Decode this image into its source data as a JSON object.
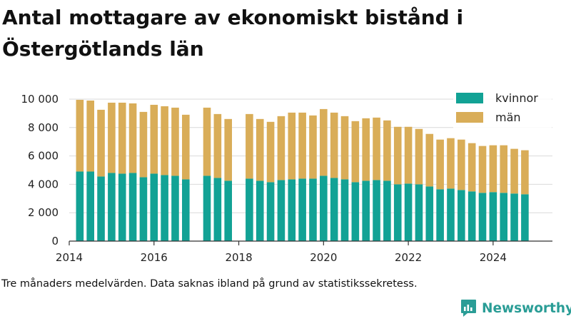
{
  "title": "Antal mottagare av ekonomiskt bistånd i Östergötlands län",
  "note": "Tre månaders medelvärden. Data saknas ibland på grund av statistikssekretess.",
  "brand": {
    "name": "Newsworthy",
    "icon": "newsworthy-logo-icon"
  },
  "colors": {
    "kvinnor": "#12a295",
    "man": "#d9ad58",
    "grid": "#d9d9d9",
    "brand": "#2a9d96"
  },
  "chart_data": {
    "type": "bar",
    "stacked": true,
    "grid": "horizontal",
    "legend_position": "top-right",
    "xlim": [
      2014.0,
      2025.4
    ],
    "ylim": [
      0,
      10400
    ],
    "x_ticks": [
      "2014",
      "2016",
      "2018",
      "2020",
      "2022",
      "2024"
    ],
    "y_ticks": [
      "0",
      "2 000",
      "4 000",
      "6 000",
      "8 000",
      "10 000"
    ],
    "x": [
      "2014-04",
      "2014-07",
      "2014-10",
      "2015-01",
      "2015-04",
      "2015-07",
      "2015-10",
      "2016-01",
      "2016-04",
      "2016-07",
      "2016-10",
      "2017-04",
      "2017-07",
      "2017-10",
      "2018-04",
      "2018-07",
      "2018-10",
      "2019-01",
      "2019-04",
      "2019-07",
      "2019-10",
      "2020-01",
      "2020-04",
      "2020-07",
      "2020-10",
      "2021-01",
      "2021-04",
      "2021-07",
      "2021-10",
      "2022-01",
      "2022-04",
      "2022-07",
      "2022-10",
      "2023-01",
      "2023-04",
      "2023-07",
      "2023-10",
      "2024-01",
      "2024-04",
      "2024-07",
      "2024-10"
    ],
    "series": [
      {
        "name": "kvinnor",
        "values": [
          4900,
          4900,
          4550,
          4800,
          4750,
          4800,
          4500,
          4750,
          4650,
          4600,
          4350,
          4600,
          4450,
          4250,
          4400,
          4250,
          4150,
          4300,
          4350,
          4400,
          4400,
          4600,
          4450,
          4350,
          4150,
          4250,
          4300,
          4250,
          4000,
          4050,
          4000,
          3850,
          3650,
          3700,
          3600,
          3500,
          3400,
          3450,
          3400,
          3350,
          3300
        ]
      },
      {
        "name": "män",
        "values": [
          5050,
          5000,
          4700,
          4950,
          5000,
          4900,
          4600,
          4850,
          4850,
          4800,
          4550,
          4800,
          4500,
          4350,
          4550,
          4350,
          4250,
          4500,
          4700,
          4650,
          4450,
          4700,
          4600,
          4450,
          4300,
          4400,
          4400,
          4250,
          4050,
          4000,
          3900,
          3700,
          3500,
          3550,
          3550,
          3400,
          3300,
          3300,
          3350,
          3150,
          3100
        ]
      }
    ]
  }
}
